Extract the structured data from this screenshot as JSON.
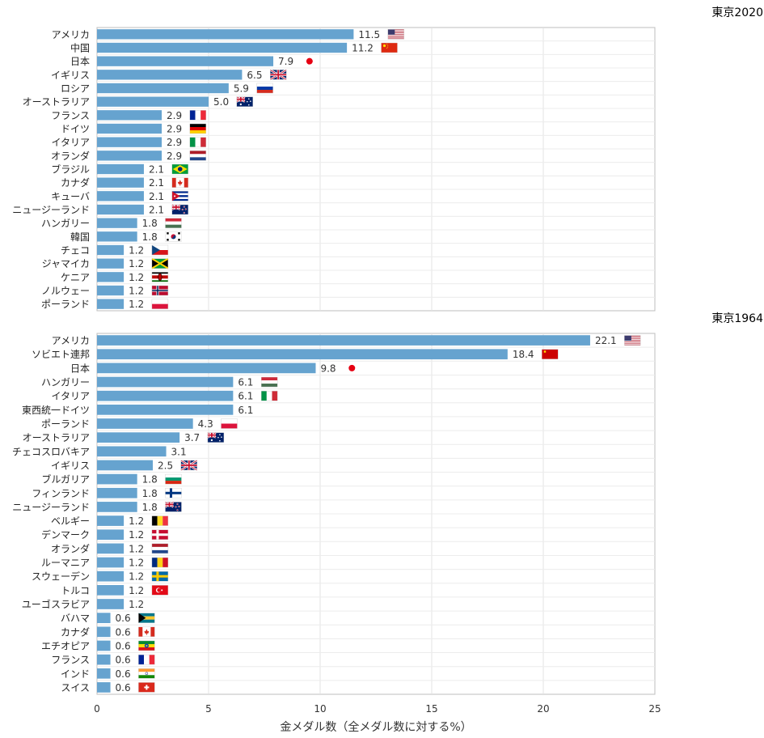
{
  "chart_data": [
    {
      "type": "bar",
      "orientation": "horizontal",
      "title": "東京2020",
      "xlim": [
        0,
        25
      ],
      "grid": true,
      "bar_color": "#66a3cf",
      "categories": [
        "アメリカ",
        "中国",
        "日本",
        "イギリス",
        "ロシア",
        "オーストラリア",
        "フランス",
        "ドイツ",
        "イタリア",
        "オランダ",
        "ブラジル",
        "カナダ",
        "キューバ",
        "ニュージーランド",
        "ハンガリー",
        "韓国",
        "チェコ",
        "ジャマイカ",
        "ケニア",
        "ノルウェー",
        "ポーランド"
      ],
      "values": [
        11.5,
        11.2,
        7.9,
        6.5,
        5.9,
        5.0,
        2.9,
        2.9,
        2.9,
        2.9,
        2.1,
        2.1,
        2.1,
        2.1,
        1.8,
        1.8,
        1.2,
        1.2,
        1.2,
        1.2,
        1.2
      ],
      "value_labels": [
        "11.5",
        "11.2",
        "7.9",
        "6.5",
        "5.9",
        "5.0",
        "2.9",
        "2.9",
        "2.9",
        "2.9",
        "2.1",
        "2.1",
        "2.1",
        "2.1",
        "1.8",
        "1.8",
        "1.2",
        "1.2",
        "1.2",
        "1.2",
        "1.2"
      ],
      "flags": [
        "us-flag",
        "cn-flag",
        "jp-flag",
        "uk-flag",
        "ru-flag",
        "au-flag",
        "fr-flag",
        "de-flag",
        "it-flag",
        "nl-flag",
        "br-flag",
        "ca-flag",
        "cu-flag",
        "nz-flag",
        "hu-flag",
        "kr-flag",
        "cz-flag",
        "jm-flag",
        "ke-flag",
        "no-flag",
        "pl-flag"
      ]
    },
    {
      "type": "bar",
      "orientation": "horizontal",
      "title": "東京1964",
      "xlim": [
        0,
        25
      ],
      "xticks": [
        0,
        5,
        10,
        15,
        20,
        25
      ],
      "xlabel": "金メダル数（全メダル数に対する%）",
      "grid": true,
      "bar_color": "#66a3cf",
      "categories": [
        "アメリカ",
        "ソビエト連邦",
        "日本",
        "ハンガリー",
        "イタリア",
        "東西統一ドイツ",
        "ポーランド",
        "オーストラリア",
        "チェコスロバキア",
        "イギリス",
        "ブルガリア",
        "フィンランド",
        "ニュージーランド",
        "ベルギー",
        "デンマーク",
        "オランダ",
        "ルーマニア",
        "スウェーデン",
        "トルコ",
        "ユーゴスラビア",
        "バハマ",
        "カナダ",
        "エチオピア",
        "フランス",
        "インド",
        "スイス"
      ],
      "values": [
        22.1,
        18.4,
        9.8,
        6.1,
        6.1,
        6.1,
        4.3,
        3.7,
        3.1,
        2.5,
        1.8,
        1.8,
        1.8,
        1.2,
        1.2,
        1.2,
        1.2,
        1.2,
        1.2,
        1.2,
        0.6,
        0.6,
        0.6,
        0.6,
        0.6,
        0.6
      ],
      "value_labels": [
        "22.1",
        "18.4",
        "9.8",
        "6.1",
        "6.1",
        "6.1",
        "4.3",
        "3.7",
        "3.1",
        "2.5",
        "1.8",
        "1.8",
        "1.8",
        "1.2",
        "1.2",
        "1.2",
        "1.2",
        "1.2",
        "1.2",
        "1.2",
        "0.6",
        "0.6",
        "0.6",
        "0.6",
        "0.6",
        "0.6"
      ],
      "flags": [
        "us-flag",
        "su-flag",
        "jp-flag",
        "hu-flag",
        "it-flag",
        "",
        "pl-flag",
        "au-flag",
        "",
        "uk-flag",
        "bg-flag",
        "fi-flag",
        "nz-flag",
        "be-flag",
        "dk-flag",
        "nl-flag",
        "ro-flag",
        "se-flag",
        "tr-flag",
        "",
        "bs-flag",
        "ca-flag",
        "et-flag",
        "fr-flag",
        "in-flag",
        "ch-flag"
      ]
    }
  ]
}
